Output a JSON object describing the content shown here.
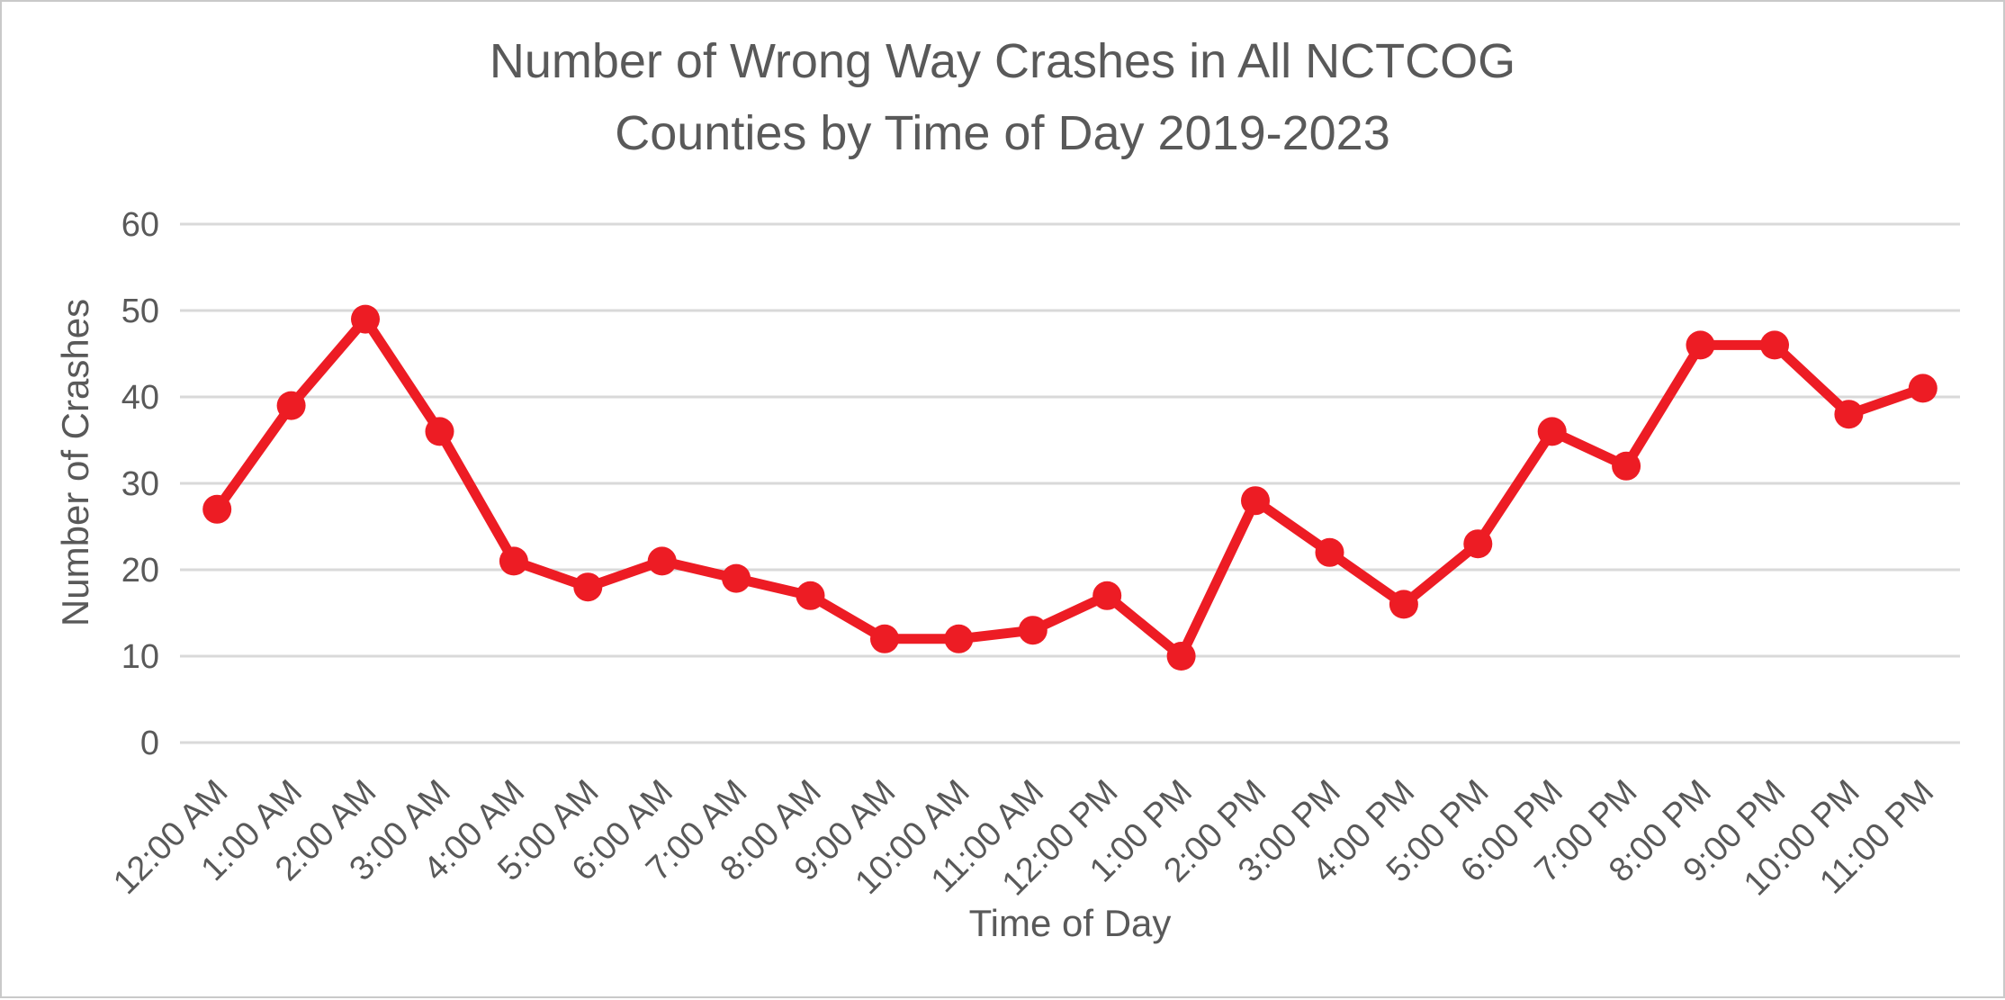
{
  "chart_data": {
    "type": "line",
    "title": "Number of Wrong Way Crashes in All NCTCOG Counties by Time of Day 2019-2023",
    "title_lines": [
      "Number of Wrong Way Crashes in All NCTCOG",
      "Counties by Time of Day 2019-2023"
    ],
    "xlabel": "Time of Day",
    "ylabel": "Number of Crashes",
    "categories": [
      "12:00 AM",
      "1:00 AM",
      "2:00 AM",
      "3:00 AM",
      "4:00 AM",
      "5:00 AM",
      "6:00 AM",
      "7:00 AM",
      "8:00 AM",
      "9:00 AM",
      "10:00 AM",
      "11:00 AM",
      "12:00 PM",
      "1:00 PM",
      "2:00 PM",
      "3:00 PM",
      "4:00 PM",
      "5:00 PM",
      "6:00 PM",
      "7:00 PM",
      "8:00 PM",
      "9:00 PM",
      "10:00 PM",
      "11:00 PM"
    ],
    "values": [
      27,
      39,
      49,
      36,
      21,
      18,
      21,
      19,
      17,
      12,
      12,
      13,
      17,
      10,
      28,
      22,
      16,
      23,
      36,
      32,
      46,
      46,
      38,
      41
    ],
    "ylim": [
      0,
      60
    ],
    "yticks": [
      0,
      10,
      20,
      30,
      40,
      50,
      60
    ],
    "grid": true,
    "legend": "none",
    "marker": "circle",
    "line_color": "#ED1C24",
    "text_color": "#595959",
    "grid_color": "#D9D9D9",
    "background_color": "#FFFFFF",
    "border_color": "#C9C9C9"
  }
}
